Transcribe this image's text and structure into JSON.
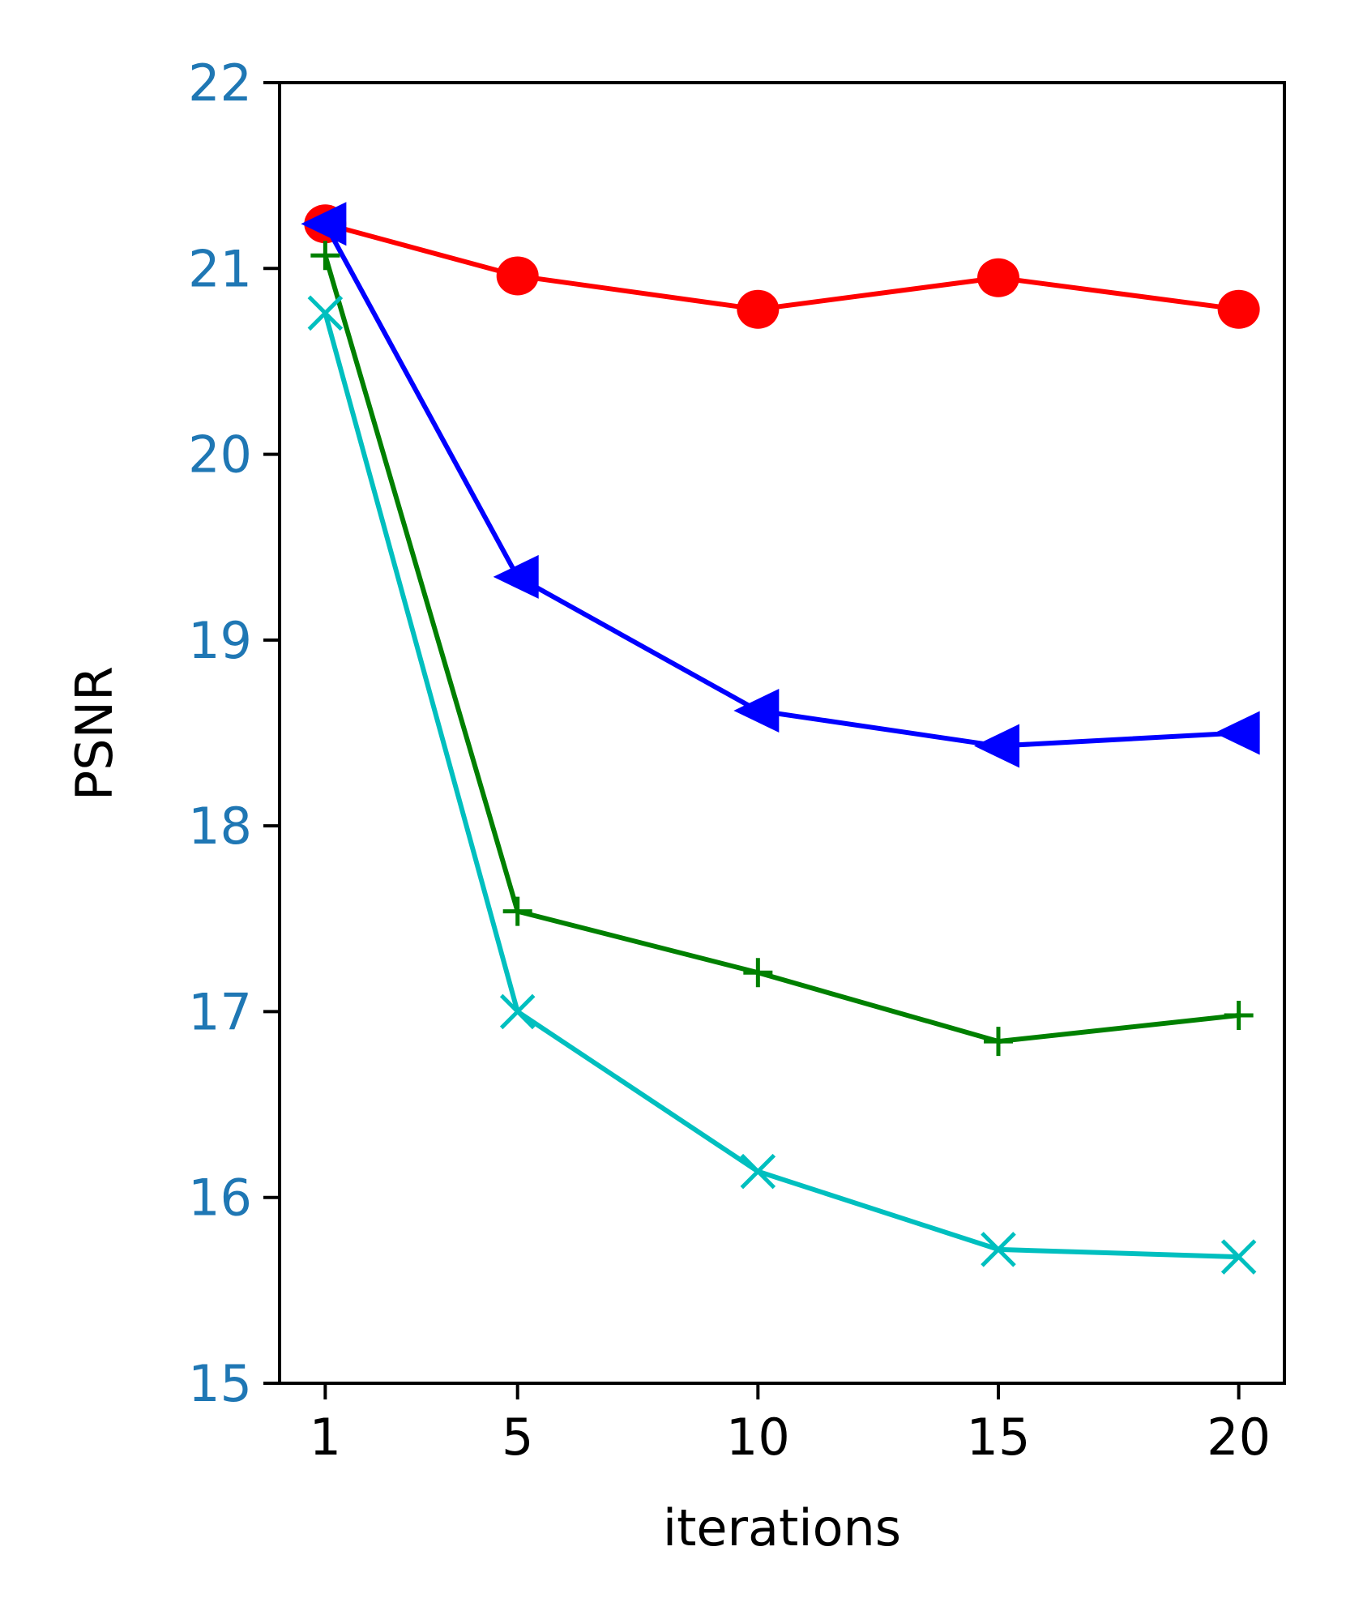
{
  "chart_data": {
    "type": "line",
    "title": "",
    "xlabel": "iterations",
    "ylabel": "PSNR",
    "x": [
      1,
      5,
      10,
      15,
      20
    ],
    "x_tick_labels": [
      "1",
      "5",
      "10",
      "15",
      "20"
    ],
    "y_tick_labels": [
      "15",
      "16",
      "17",
      "18",
      "19",
      "20",
      "21",
      "22"
    ],
    "ylim": [
      15,
      22
    ],
    "xlim": [
      0.05,
      20.95
    ],
    "grid": false,
    "legend": "none",
    "colors": {
      "y_tick_labels": "#1f77b4",
      "x_tick_labels": "#000000",
      "axes": "#000000"
    },
    "series": [
      {
        "color": "#ff0000",
        "marker": "circle",
        "values": [
          21.24,
          20.96,
          20.78,
          20.95,
          20.78
        ]
      },
      {
        "color": "#0000ff",
        "marker": "triangle-left",
        "values": [
          21.24,
          19.34,
          18.62,
          18.43,
          18.5
        ]
      },
      {
        "color": "#008000",
        "marker": "plus",
        "values": [
          21.07,
          17.54,
          17.21,
          16.84,
          16.98
        ]
      },
      {
        "color": "#00bfbf",
        "marker": "x",
        "values": [
          20.76,
          17.0,
          16.14,
          15.72,
          15.68
        ]
      }
    ]
  }
}
